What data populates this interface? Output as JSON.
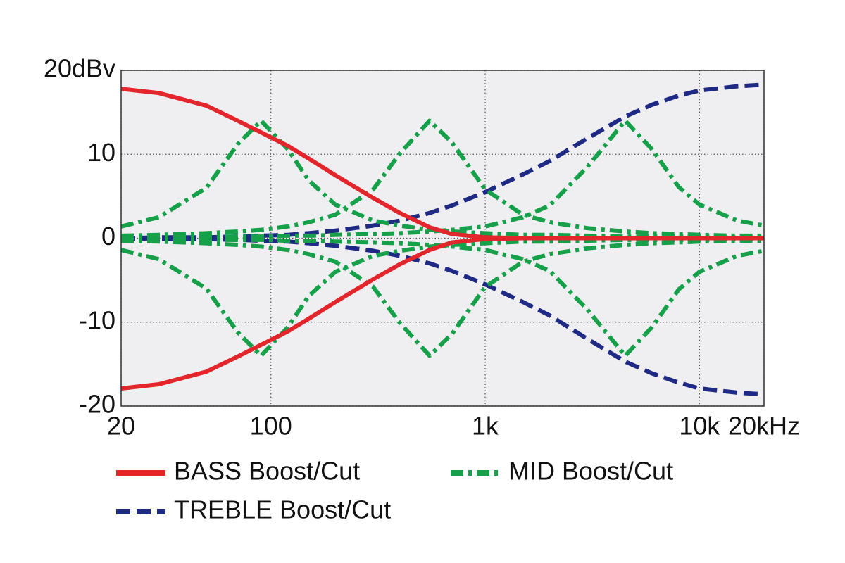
{
  "chart_data": {
    "type": "line",
    "log_x": true,
    "grid": true,
    "x": [
      20,
      30,
      50,
      70,
      90,
      120,
      150,
      200,
      300,
      400,
      550,
      700,
      1000,
      1500,
      2000,
      3000,
      4500,
      6000,
      8000,
      10000,
      15000,
      20000
    ],
    "xlim": [
      20,
      20000
    ],
    "xticks": [
      {
        "value": 20,
        "label": "20"
      },
      100,
      {
        "value": 1000,
        "label": "1k"
      },
      {
        "value": 10000,
        "label": "10k"
      },
      {
        "value": 20000,
        "label": "20kHz"
      }
    ],
    "ylim": [
      -20,
      20
    ],
    "yticks": [
      -20,
      -10,
      0,
      10,
      {
        "value": 20,
        "label": "20dBv"
      }
    ],
    "series": [
      {
        "name": "BASS Boost/Cut",
        "color": "#e3262b",
        "dash": "solid",
        "curves": [
          [
            17.8,
            17.3,
            15.8,
            14.0,
            12.6,
            11.0,
            9.5,
            7.5,
            4.8,
            3.0,
            1.3,
            0.5,
            0.1,
            0,
            0,
            0,
            0,
            0,
            0,
            0,
            0,
            0
          ],
          [
            -17.9,
            -17.4,
            -15.9,
            -14.1,
            -12.7,
            -11.1,
            -9.6,
            -7.6,
            -4.9,
            -3.1,
            -1.4,
            -0.5,
            -0.1,
            0,
            0,
            0,
            0,
            0,
            0,
            0,
            0,
            0
          ]
        ]
      },
      {
        "name": "MID Boost/Cut",
        "color": "#17a04a",
        "dash": "dashdot",
        "curves": [
          [
            1.4,
            2.5,
            6.0,
            11.2,
            14,
            10.6,
            6.9,
            4.0,
            2.1,
            1.5,
            1.0,
            0.8,
            0.6,
            0.4,
            0.4,
            0.3,
            0.2,
            0.2,
            0.2,
            0.2,
            0.1,
            0.1
          ],
          [
            -1.4,
            -2.5,
            -6.0,
            -11.2,
            -14,
            -10.6,
            -6.9,
            -4.0,
            -2.1,
            -1.5,
            -1.0,
            -0.8,
            -0.6,
            -0.4,
            -0.4,
            -0.3,
            -0.2,
            -0.2,
            -0.2,
            -0.2,
            -0.1,
            -0.1
          ],
          [
            0.3,
            0.4,
            0.6,
            0.8,
            1.0,
            1.4,
            1.9,
            2.8,
            5.8,
            10.1,
            14,
            11.4,
            5.8,
            2.8,
            1.9,
            1.2,
            0.8,
            0.6,
            0.5,
            0.4,
            0.3,
            0.3
          ],
          [
            -0.3,
            -0.4,
            -0.6,
            -0.8,
            -1.0,
            -1.4,
            -1.9,
            -2.8,
            -5.8,
            -10.1,
            -14,
            -11.4,
            -5.8,
            -2.8,
            -1.9,
            -1.2,
            -0.8,
            -0.6,
            -0.5,
            -0.4,
            -0.3,
            -0.3
          ],
          [
            0.1,
            0.1,
            0.2,
            0.2,
            0.2,
            0.3,
            0.3,
            0.4,
            0.5,
            0.6,
            0.8,
            1.0,
            1.4,
            2.5,
            3.9,
            8.5,
            14,
            10.6,
            6.1,
            4.0,
            2.1,
            1.5
          ],
          [
            -0.1,
            -0.1,
            -0.2,
            -0.2,
            -0.2,
            -0.3,
            -0.3,
            -0.4,
            -0.5,
            -0.6,
            -0.8,
            -1.0,
            -1.4,
            -2.5,
            -3.9,
            -8.5,
            -14,
            -10.6,
            -6.1,
            -4.0,
            -2.1,
            -1.5
          ]
        ]
      },
      {
        "name": "TREBLE Boost/Cut",
        "color": "#1f2a84",
        "dash": "dashed",
        "curves": [
          [
            0,
            0.1,
            0.1,
            0.2,
            0.3,
            0.4,
            0.6,
            0.9,
            1.5,
            2.1,
            3.0,
            3.9,
            5.5,
            7.6,
            9.2,
            11.9,
            14.5,
            15.9,
            17.0,
            17.6,
            18.1,
            18.3
          ],
          [
            0,
            -0.1,
            -0.1,
            -0.2,
            -0.3,
            -0.4,
            -0.6,
            -0.9,
            -1.5,
            -2.1,
            -3.0,
            -3.9,
            -5.5,
            -7.6,
            -9.2,
            -12.0,
            -14.7,
            -16.1,
            -17.2,
            -17.9,
            -18.4,
            -18.6
          ]
        ]
      }
    ]
  }
}
